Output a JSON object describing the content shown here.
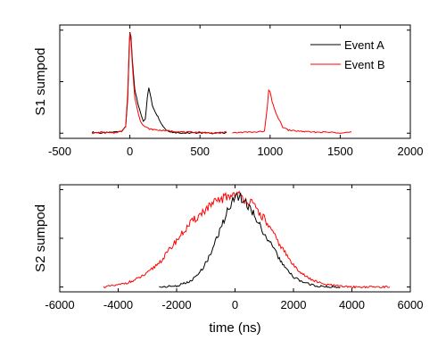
{
  "chart_data": [
    {
      "type": "line",
      "panel": "top",
      "ylabel": "S1 sumpod",
      "xlabel": "",
      "xlim": [
        -500,
        2000
      ],
      "xticks": [
        -500,
        0,
        500,
        1000,
        1500,
        2000
      ],
      "ylim": [
        -0.05,
        1.05
      ],
      "yticks_visible": false,
      "grid": false,
      "legend": {
        "placement": "top-right",
        "entries": [
          {
            "label": "Event A",
            "color": "#000000"
          },
          {
            "label": "Event B",
            "color": "#ff0000"
          }
        ]
      },
      "series": [
        {
          "name": "Event A",
          "color": "#000000",
          "points": [
            [
              -270,
              0.01
            ],
            [
              -200,
              0.0
            ],
            [
              -120,
              0.01
            ],
            [
              -60,
              0.02
            ],
            [
              -30,
              0.06
            ],
            [
              -15,
              0.35
            ],
            [
              -5,
              0.8
            ],
            [
              0,
              0.98
            ],
            [
              8,
              0.93
            ],
            [
              18,
              0.7
            ],
            [
              35,
              0.42
            ],
            [
              55,
              0.3
            ],
            [
              75,
              0.2
            ],
            [
              95,
              0.12
            ],
            [
              110,
              0.14
            ],
            [
              125,
              0.35
            ],
            [
              135,
              0.44
            ],
            [
              145,
              0.38
            ],
            [
              160,
              0.27
            ],
            [
              180,
              0.21
            ],
            [
              200,
              0.16
            ],
            [
              230,
              0.08
            ],
            [
              260,
              0.03
            ],
            [
              300,
              0.01
            ],
            [
              400,
              0.0
            ],
            [
              500,
              0.005
            ],
            [
              600,
              0.0
            ],
            [
              690,
              0.005
            ]
          ]
        },
        {
          "name": "Event B",
          "color": "#ff0000",
          "points": [
            [
              -270,
              0.0
            ],
            [
              -200,
              0.01
            ],
            [
              -120,
              0.0
            ],
            [
              -60,
              0.02
            ],
            [
              -30,
              0.07
            ],
            [
              -15,
              0.4
            ],
            [
              -5,
              0.85
            ],
            [
              0,
              0.97
            ],
            [
              8,
              0.9
            ],
            [
              18,
              0.65
            ],
            [
              35,
              0.35
            ],
            [
              55,
              0.22
            ],
            [
              75,
              0.12
            ],
            [
              100,
              0.07
            ],
            [
              140,
              0.04
            ],
            [
              200,
              0.03
            ],
            [
              300,
              0.02
            ],
            [
              400,
              0.01
            ],
            [
              500,
              0.01
            ],
            [
              600,
              0.0
            ],
            [
              690,
              0.01
            ],
            [
              null,
              null
            ],
            [
              730,
              0.0
            ],
            [
              800,
              0.01
            ],
            [
              900,
              0.01
            ],
            [
              960,
              0.02
            ],
            [
              980,
              0.25
            ],
            [
              990,
              0.42
            ],
            [
              1000,
              0.4
            ],
            [
              1015,
              0.3
            ],
            [
              1035,
              0.22
            ],
            [
              1060,
              0.14
            ],
            [
              1090,
              0.06
            ],
            [
              1130,
              0.03
            ],
            [
              1200,
              0.02
            ],
            [
              1300,
              0.01
            ],
            [
              1400,
              0.01
            ],
            [
              1500,
              0.005
            ],
            [
              1580,
              0.01
            ]
          ]
        }
      ]
    },
    {
      "type": "line",
      "panel": "bottom",
      "ylabel": "S2 sumpod",
      "xlabel": "time (ns)",
      "xlim": [
        -6000,
        6000
      ],
      "xticks": [
        -6000,
        -4000,
        -2000,
        0,
        2000,
        4000,
        6000
      ],
      "ylim": [
        -0.05,
        1.05
      ],
      "yticks_visible": false,
      "grid": false,
      "series": [
        {
          "name": "Event B",
          "color": "#ff0000",
          "points": [
            [
              -4500,
              0.0
            ],
            [
              -4000,
              0.02
            ],
            [
              -3500,
              0.06
            ],
            [
              -3000,
              0.14
            ],
            [
              -2500,
              0.28
            ],
            [
              -2000,
              0.48
            ],
            [
              -1500,
              0.66
            ],
            [
              -1000,
              0.8
            ],
            [
              -500,
              0.9
            ],
            [
              0,
              0.96
            ],
            [
              500,
              0.88
            ],
            [
              1000,
              0.7
            ],
            [
              1500,
              0.45
            ],
            [
              2000,
              0.22
            ],
            [
              2500,
              0.09
            ],
            [
              3000,
              0.03
            ],
            [
              3500,
              0.01
            ],
            [
              4000,
              0.0
            ],
            [
              4500,
              0.0
            ],
            [
              5000,
              0.0
            ],
            [
              5300,
              0.0
            ]
          ]
        },
        {
          "name": "Event A",
          "color": "#000000",
          "points": [
            [
              -2600,
              0.0
            ],
            [
              -2000,
              0.01
            ],
            [
              -1500,
              0.06
            ],
            [
              -1200,
              0.15
            ],
            [
              -900,
              0.3
            ],
            [
              -600,
              0.52
            ],
            [
              -300,
              0.75
            ],
            [
              0,
              0.95
            ],
            [
              300,
              0.9
            ],
            [
              700,
              0.72
            ],
            [
              1000,
              0.55
            ],
            [
              1300,
              0.4
            ],
            [
              1700,
              0.2
            ],
            [
              2000,
              0.1
            ],
            [
              2400,
              0.04
            ],
            [
              2800,
              0.01
            ],
            [
              3200,
              0.0
            ],
            [
              3600,
              0.0
            ]
          ]
        }
      ]
    }
  ]
}
